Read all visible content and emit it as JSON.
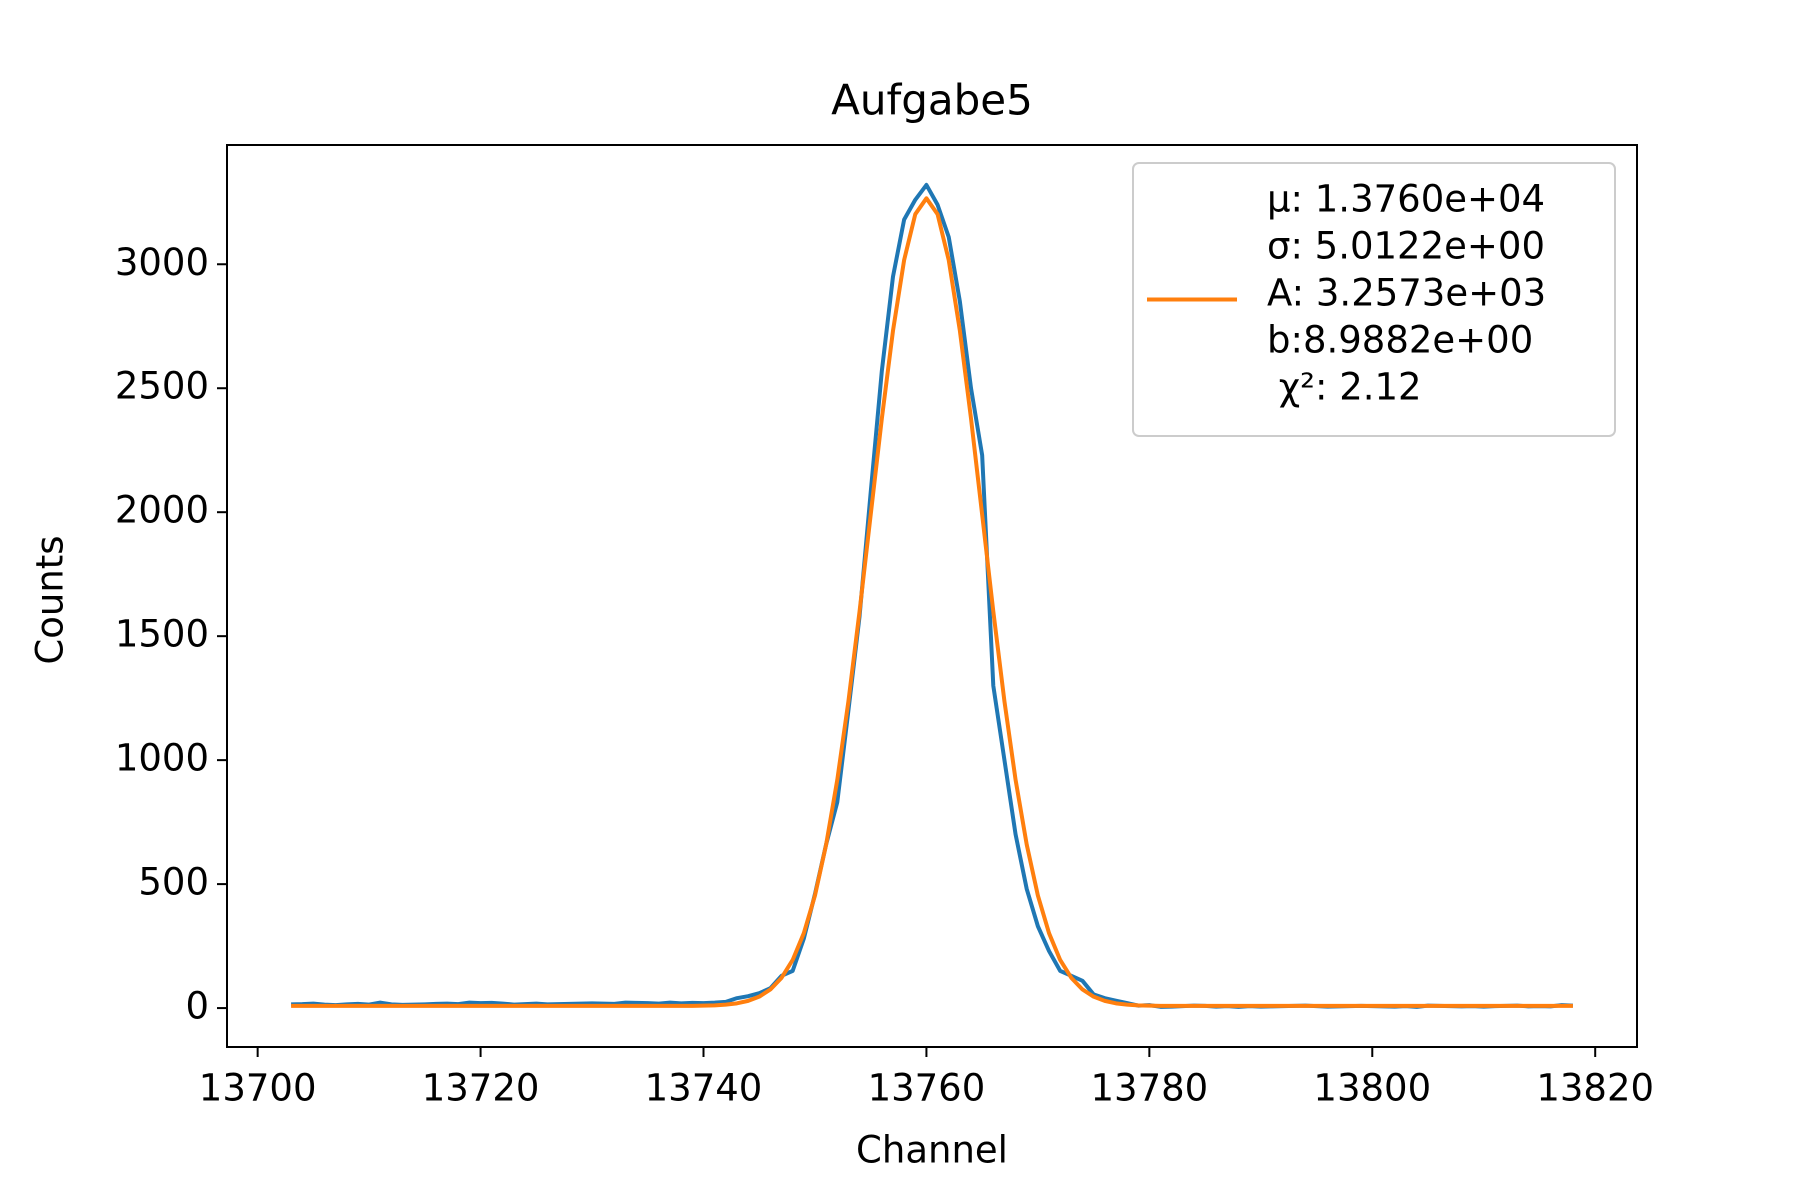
{
  "chart_data": {
    "type": "line",
    "title": "Aufgabe5",
    "x_label": "Channel",
    "y_label": "Counts",
    "x": [
      13703,
      13704,
      13705,
      13706,
      13707,
      13708,
      13709,
      13710,
      13711,
      13712,
      13713,
      13714,
      13715,
      13716,
      13717,
      13718,
      13719,
      13720,
      13721,
      13722,
      13723,
      13724,
      13725,
      13726,
      13727,
      13728,
      13729,
      13730,
      13731,
      13732,
      13733,
      13734,
      13735,
      13736,
      13737,
      13738,
      13739,
      13740,
      13741,
      13742,
      13743,
      13744,
      13745,
      13746,
      13747,
      13748,
      13749,
      13750,
      13751,
      13752,
      13753,
      13754,
      13755,
      13756,
      13757,
      13758,
      13759,
      13760,
      13761,
      13762,
      13763,
      13764,
      13765,
      13766,
      13767,
      13768,
      13769,
      13770,
      13771,
      13772,
      13773,
      13774,
      13775,
      13776,
      13777,
      13778,
      13779,
      13780,
      13781,
      13782,
      13783,
      13784,
      13785,
      13786,
      13787,
      13788,
      13789,
      13790,
      13791,
      13792,
      13793,
      13794,
      13795,
      13796,
      13797,
      13798,
      13799,
      13800,
      13801,
      13802,
      13803,
      13804,
      13805,
      13806,
      13807,
      13808,
      13809,
      13810,
      13811,
      13812,
      13813,
      13814,
      13815,
      13816,
      13817,
      13818
    ],
    "series": [
      {
        "color": "#1f77b4",
        "values": [
          15,
          16,
          18,
          14,
          12,
          15,
          17,
          14,
          22,
          15,
          13,
          14,
          15,
          17,
          18,
          16,
          22,
          20,
          21,
          18,
          14,
          16,
          18,
          15,
          16,
          17,
          18,
          19,
          18,
          17,
          22,
          21,
          20,
          18,
          22,
          19,
          21,
          20,
          22,
          25,
          40,
          48,
          60,
          80,
          130,
          150,
          280,
          460,
          660,
          830,
          1200,
          1580,
          2080,
          2570,
          2950,
          3180,
          3260,
          3320,
          3240,
          3110,
          2850,
          2500,
          2230,
          1300,
          1000,
          700,
          480,
          330,
          230,
          150,
          130,
          110,
          55,
          40,
          30,
          20,
          10,
          12,
          5,
          6,
          8,
          10,
          9,
          6,
          8,
          5,
          8,
          6,
          7,
          8,
          9,
          10,
          8,
          6,
          7,
          8,
          9,
          8,
          7,
          6,
          8,
          5,
          10,
          9,
          8,
          7,
          8,
          6,
          8,
          9,
          10,
          7,
          8,
          7,
          12,
          10
        ]
      },
      {
        "color": "#ff7f0e",
        "name": [
          "μ: 1.3760e+04",
          "σ: 5.0122e+00",
          "A: 3.2573e+03",
          "b:8.9882e+00",
          " χ²: 2.12"
        ],
        "values": [
          9,
          9,
          9,
          9,
          9,
          9,
          9,
          9,
          9,
          9,
          9,
          9,
          9,
          9,
          9,
          9,
          9,
          9,
          9,
          9,
          9,
          9,
          9,
          9,
          9,
          9,
          9,
          9,
          9,
          9,
          9,
          9,
          9,
          9,
          9,
          9,
          9,
          10,
          11,
          14,
          19,
          29,
          46,
          75,
          122,
          194,
          302,
          454,
          659,
          920,
          1237,
          1600,
          1990,
          2378,
          2732,
          3017,
          3202,
          3266,
          3202,
          3017,
          2732,
          2378,
          1990,
          1600,
          1237,
          920,
          659,
          454,
          302,
          194,
          122,
          75,
          46,
          29,
          19,
          14,
          11,
          10,
          9,
          9,
          9,
          9,
          9,
          9,
          9,
          9,
          9,
          9,
          9,
          9,
          9,
          9,
          9,
          9,
          9,
          9,
          9,
          9,
          9,
          9,
          9,
          9,
          9,
          9,
          9,
          9,
          9,
          9,
          9,
          9,
          9,
          9,
          9,
          9,
          9,
          9
        ]
      }
    ],
    "xlim": [
      13697.25,
      13823.75
    ],
    "ylim": [
      -157,
      3481
    ],
    "xticks": [
      13700,
      13720,
      13740,
      13760,
      13780,
      13800,
      13820
    ],
    "yticks": [
      0,
      500,
      1000,
      1500,
      2000,
      2500,
      3000
    ],
    "legend": "upper right"
  }
}
